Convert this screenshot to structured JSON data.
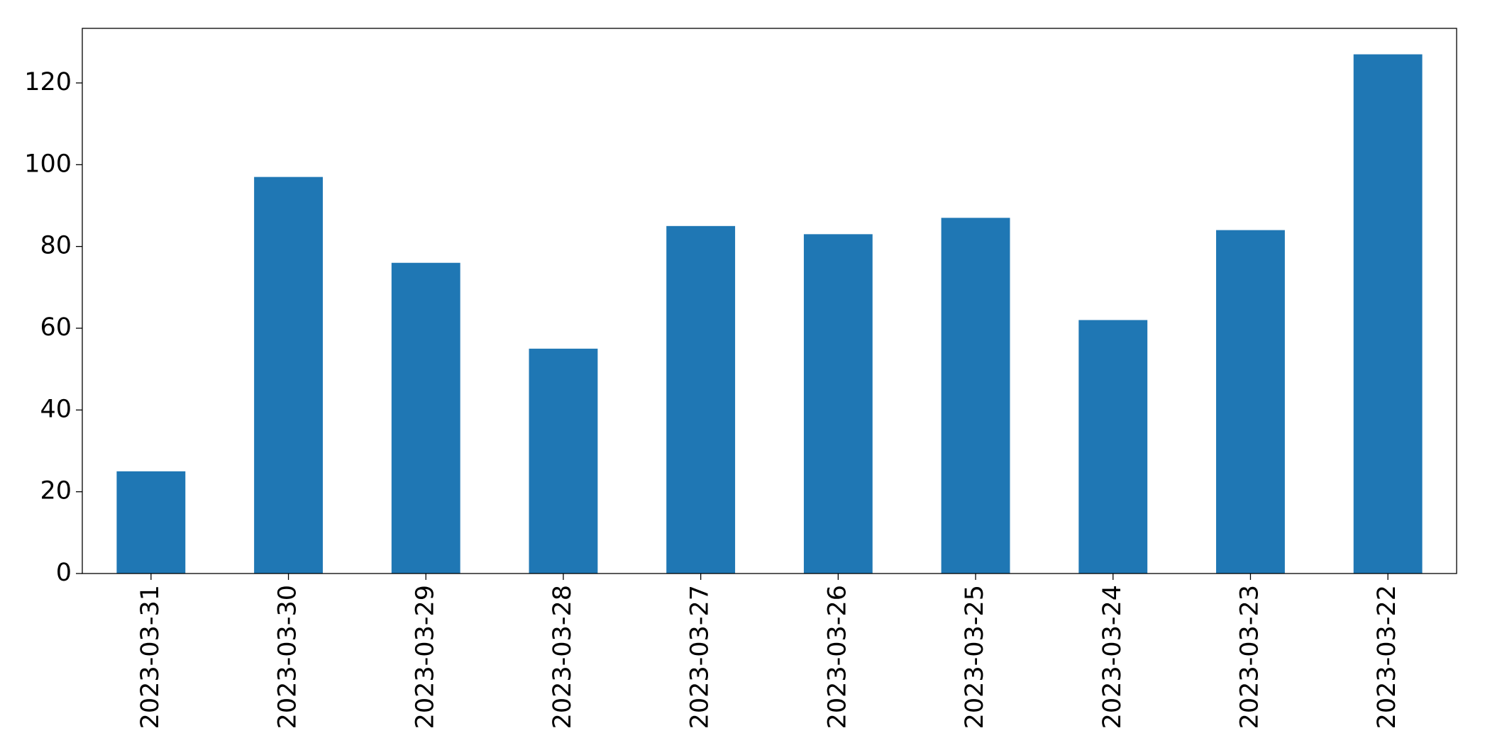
{
  "chart_data": {
    "type": "bar",
    "categories": [
      "2023-03-31",
      "2023-03-30",
      "2023-03-29",
      "2023-03-28",
      "2023-03-27",
      "2023-03-26",
      "2023-03-25",
      "2023-03-24",
      "2023-03-23",
      "2023-03-22"
    ],
    "values": [
      25,
      97,
      76,
      55,
      85,
      83,
      87,
      62,
      84,
      127
    ],
    "color": "#1f77b4",
    "ylim": [
      0,
      133.35
    ],
    "yticks": [
      0,
      20,
      40,
      60,
      80,
      100,
      120
    ],
    "grid": false
  }
}
